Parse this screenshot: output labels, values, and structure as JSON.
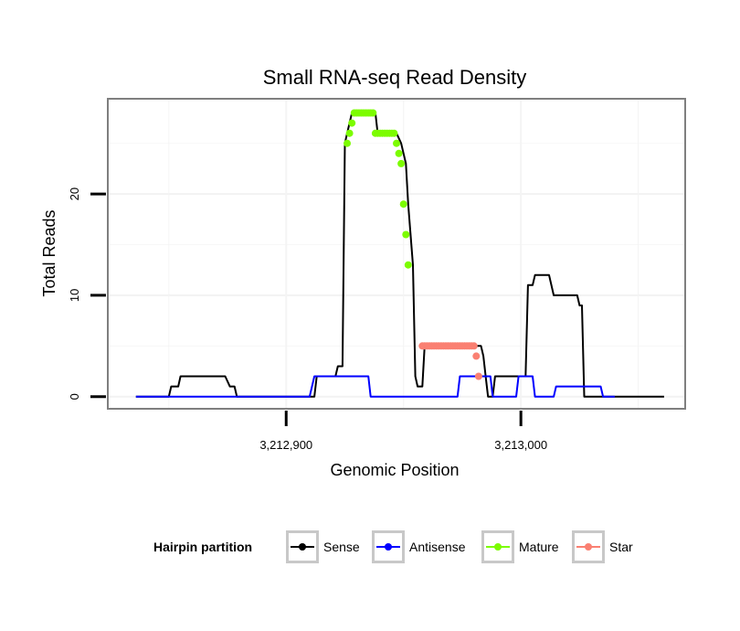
{
  "chart_data": {
    "type": "line",
    "title": "Small RNA-seq Read Density",
    "xlabel": "Genomic Position",
    "ylabel": "Total Reads",
    "xlim": [
      3212824,
      3213070
    ],
    "ylim": [
      -1.2,
      29.4
    ],
    "x_ticks": [
      {
        "value": 3212900,
        "label": "3,212,900"
      },
      {
        "value": 3213000,
        "label": "3,213,000"
      }
    ],
    "y_ticks": [
      {
        "value": 0,
        "label": "0"
      },
      {
        "value": 10,
        "label": "10"
      },
      {
        "value": 20,
        "label": "20"
      }
    ],
    "grid": true,
    "legend": {
      "title": "Hairpin partition",
      "position": "bottom",
      "entries": [
        {
          "label": "Sense",
          "color": "#000000"
        },
        {
          "label": "Antisense",
          "color": "#0000ff"
        },
        {
          "label": "Mature",
          "color": "#7cfc00"
        },
        {
          "label": "Star",
          "color": "#fa8072"
        }
      ]
    },
    "series": [
      {
        "name": "Sense",
        "color": "#000000",
        "mark": "line",
        "points": [
          [
            3212836,
            0
          ],
          [
            3212850,
            0
          ],
          [
            3212851,
            1
          ],
          [
            3212854,
            1
          ],
          [
            3212855,
            2
          ],
          [
            3212874,
            2
          ],
          [
            3212876,
            1
          ],
          [
            3212878,
            1
          ],
          [
            3212879,
            0
          ],
          [
            3212912,
            0
          ],
          [
            3212913,
            2
          ],
          [
            3212921,
            2
          ],
          [
            3212922,
            3
          ],
          [
            3212924,
            3
          ],
          [
            3212925,
            25
          ],
          [
            3212926,
            26
          ],
          [
            3212927,
            27
          ],
          [
            3212928,
            28
          ],
          [
            3212930,
            28
          ],
          [
            3212938,
            28
          ],
          [
            3212939,
            26
          ],
          [
            3212947,
            26
          ],
          [
            3212949,
            25
          ],
          [
            3212950,
            24
          ],
          [
            3212951,
            23
          ],
          [
            3212952,
            19
          ],
          [
            3212953,
            16
          ],
          [
            3212954,
            13
          ],
          [
            3212955,
            2
          ],
          [
            3212956,
            1
          ],
          [
            3212958,
            1
          ],
          [
            3212959,
            5
          ],
          [
            3212983,
            5
          ],
          [
            3212984,
            4
          ],
          [
            3212985,
            2
          ],
          [
            3212986,
            0
          ],
          [
            3212988,
            0
          ],
          [
            3212989,
            2
          ],
          [
            3213002,
            2
          ],
          [
            3213003,
            11
          ],
          [
            3213005,
            11
          ],
          [
            3213006,
            12
          ],
          [
            3213012,
            12
          ],
          [
            3213014,
            10
          ],
          [
            3213024,
            10
          ],
          [
            3213025,
            9
          ],
          [
            3213026,
            9
          ],
          [
            3213027,
            0
          ],
          [
            3213061,
            0
          ]
        ]
      },
      {
        "name": "Antisense",
        "color": "#0000ff",
        "mark": "line",
        "points": [
          [
            3212836,
            0
          ],
          [
            3212910,
            0
          ],
          [
            3212911,
            1
          ],
          [
            3212912,
            2
          ],
          [
            3212935,
            2
          ],
          [
            3212936,
            0
          ],
          [
            3212973,
            0
          ],
          [
            3212974,
            2
          ],
          [
            3212987,
            2
          ],
          [
            3212988,
            0
          ],
          [
            3212998,
            0
          ],
          [
            3212999,
            2
          ],
          [
            3213005,
            2
          ],
          [
            3213006,
            0
          ],
          [
            3213014,
            0
          ],
          [
            3213015,
            1
          ],
          [
            3213034,
            1
          ],
          [
            3213035,
            0
          ],
          [
            3213040,
            0
          ]
        ]
      },
      {
        "name": "Mature",
        "color": "#7cfc00",
        "mark": "points",
        "points": [
          [
            3212926,
            25
          ],
          [
            3212927,
            26
          ],
          [
            3212928,
            27
          ],
          [
            3212929,
            28
          ],
          [
            3212930,
            28
          ],
          [
            3212931,
            28
          ],
          [
            3212932,
            28
          ],
          [
            3212933,
            28
          ],
          [
            3212934,
            28
          ],
          [
            3212935,
            28
          ],
          [
            3212936,
            28
          ],
          [
            3212937,
            28
          ],
          [
            3212938,
            26
          ],
          [
            3212939,
            26
          ],
          [
            3212940,
            26
          ],
          [
            3212941,
            26
          ],
          [
            3212942,
            26
          ],
          [
            3212943,
            26
          ],
          [
            3212944,
            26
          ],
          [
            3212945,
            26
          ],
          [
            3212946,
            26
          ],
          [
            3212947,
            25
          ],
          [
            3212948,
            24
          ],
          [
            3212949,
            23
          ],
          [
            3212950,
            19
          ],
          [
            3212951,
            16
          ],
          [
            3212952,
            13
          ]
        ]
      },
      {
        "name": "Star",
        "color": "#fa8072",
        "mark": "points",
        "points": [
          [
            3212958,
            5
          ],
          [
            3212959,
            5
          ],
          [
            3212960,
            5
          ],
          [
            3212961,
            5
          ],
          [
            3212962,
            5
          ],
          [
            3212963,
            5
          ],
          [
            3212964,
            5
          ],
          [
            3212965,
            5
          ],
          [
            3212966,
            5
          ],
          [
            3212967,
            5
          ],
          [
            3212968,
            5
          ],
          [
            3212969,
            5
          ],
          [
            3212970,
            5
          ],
          [
            3212971,
            5
          ],
          [
            3212972,
            5
          ],
          [
            3212973,
            5
          ],
          [
            3212974,
            5
          ],
          [
            3212975,
            5
          ],
          [
            3212976,
            5
          ],
          [
            3212977,
            5
          ],
          [
            3212978,
            5
          ],
          [
            3212979,
            5
          ],
          [
            3212980,
            5
          ],
          [
            3212981,
            4
          ],
          [
            3212982,
            2
          ]
        ]
      }
    ]
  }
}
